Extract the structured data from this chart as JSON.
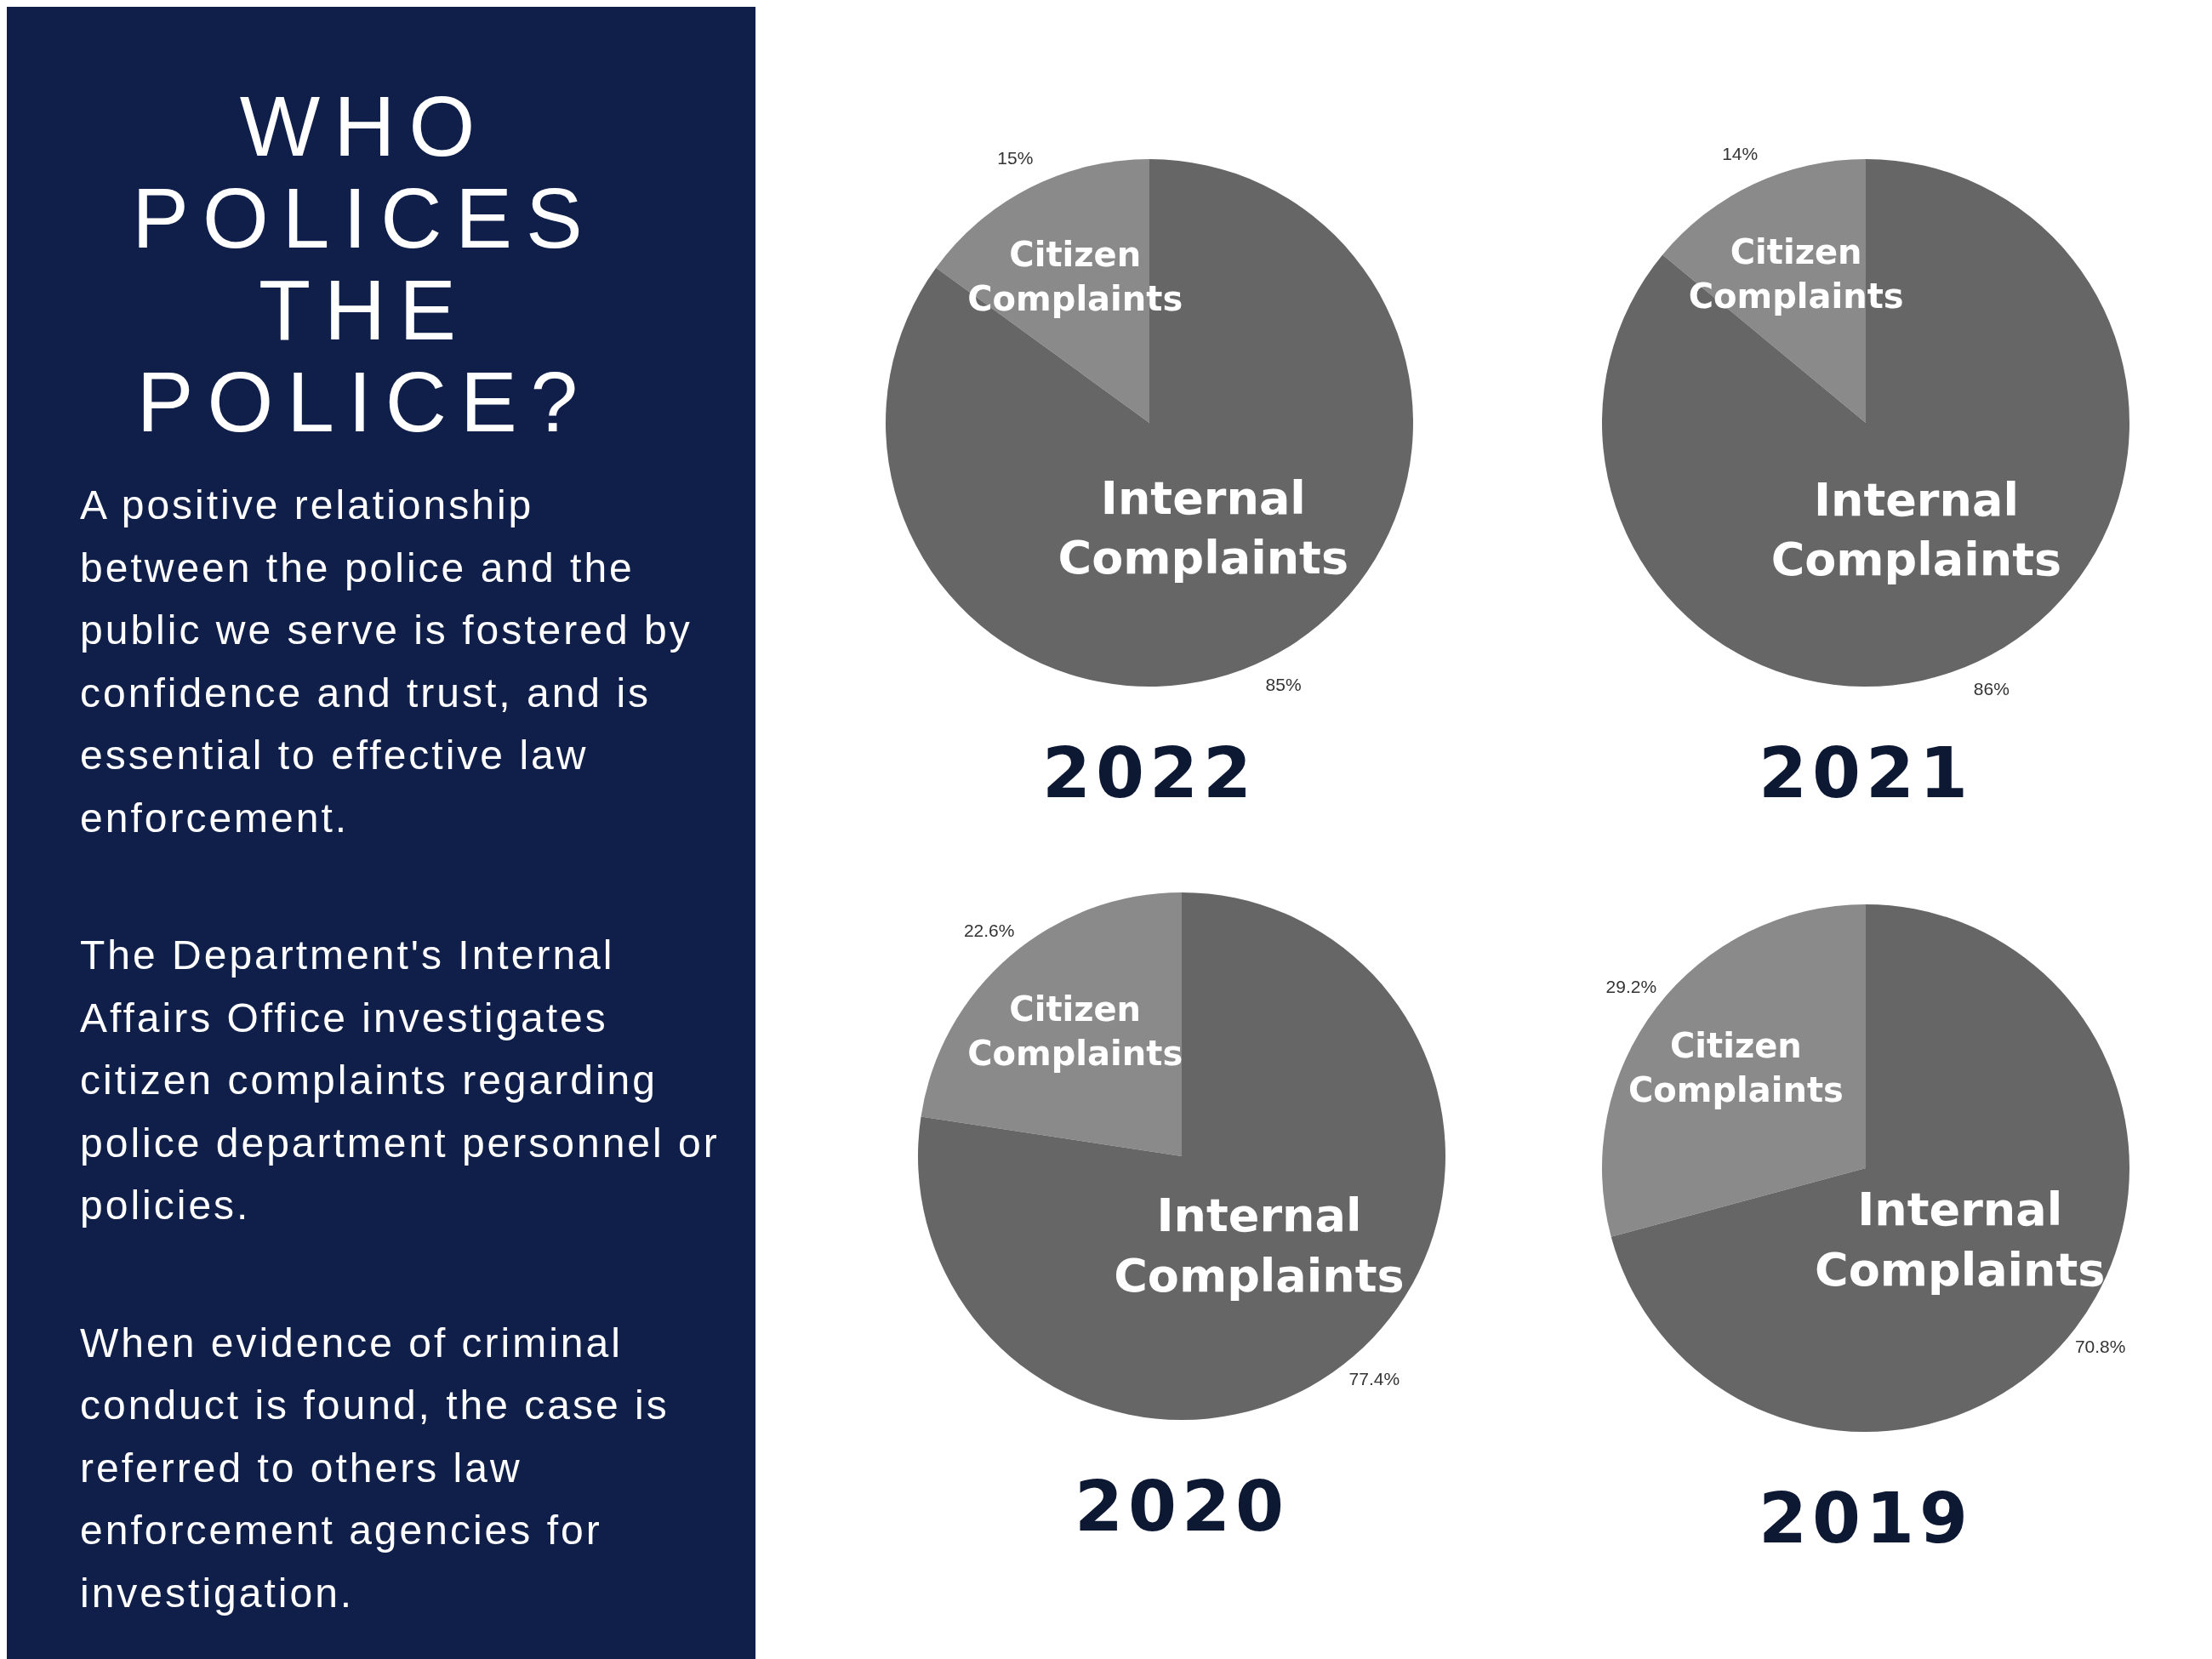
{
  "chart_data": [
    {
      "type": "other",
      "title": "WHO POLICES THE POLICE?",
      "annotations": [
        "A positive relationship between the police and the public we serve is fostered by confidence and trust, and is essential to effective law enforcement.",
        "The Department's Internal Affairs Office investigates citizen complaints regarding police department personnel or policies.",
        "When evidence of criminal conduct is found, the case is referred to others law enforcement agencies for investigation."
      ]
    },
    {
      "type": "pie",
      "title": "2022",
      "categories": [
        "Citizen Complaints",
        "Internal Complaints"
      ],
      "values": [
        15,
        85
      ],
      "value_labels": [
        "15%",
        "85%"
      ],
      "colors": [
        "#8a8a8a",
        "#666666"
      ]
    },
    {
      "type": "pie",
      "title": "2021",
      "categories": [
        "Citizen Complaints",
        "Internal Complaints"
      ],
      "values": [
        14,
        86
      ],
      "value_labels": [
        "14%",
        "86%"
      ],
      "colors": [
        "#8a8a8a",
        "#666666"
      ]
    },
    {
      "type": "pie",
      "title": "2020",
      "categories": [
        "Citizen Complaints",
        "Internal Complaints"
      ],
      "values": [
        22.6,
        77.4
      ],
      "value_labels": [
        "22.6%",
        "77.4%"
      ],
      "colors": [
        "#8a8a8a",
        "#666666"
      ]
    },
    {
      "type": "pie",
      "title": "2019",
      "categories": [
        "Citizen Complaints",
        "Internal Complaints"
      ],
      "values": [
        29.2,
        70.8
      ],
      "value_labels": [
        "29.2%",
        "70.8%"
      ],
      "colors": [
        "#8a8a8a",
        "#666666"
      ]
    }
  ]
}
